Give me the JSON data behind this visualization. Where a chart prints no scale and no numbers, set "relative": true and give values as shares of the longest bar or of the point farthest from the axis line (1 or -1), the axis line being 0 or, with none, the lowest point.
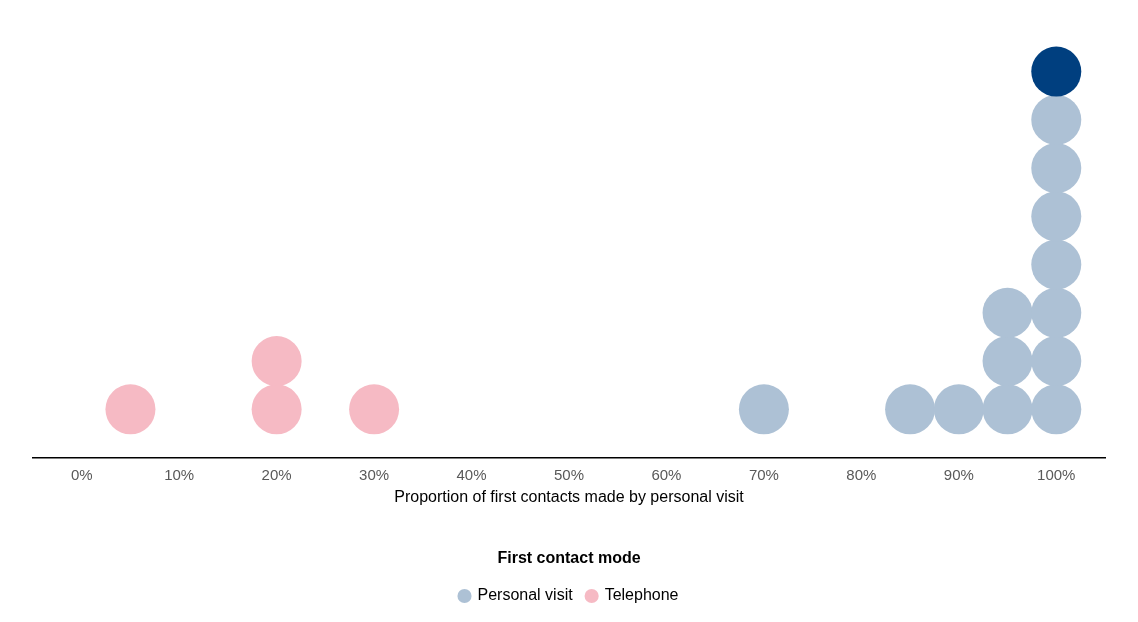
{
  "chart_data": {
    "type": "scatter",
    "xlabel": "Proportion of first contacts made by personal visit",
    "legend_title": "First contact mode",
    "legend": "bottom",
    "grid": false,
    "marker": "circle",
    "relative": true,
    "xlim": [
      -5,
      105
    ],
    "xticks": [
      {
        "value": 0,
        "label": "0%"
      },
      {
        "value": 10,
        "label": "10%"
      },
      {
        "value": 20,
        "label": "20%"
      },
      {
        "value": 30,
        "label": "30%"
      },
      {
        "value": 40,
        "label": "40%"
      },
      {
        "value": 50,
        "label": "50%"
      },
      {
        "value": 60,
        "label": "60%"
      },
      {
        "value": 70,
        "label": "70%"
      },
      {
        "value": 80,
        "label": "80%"
      },
      {
        "value": 90,
        "label": "90%"
      },
      {
        "value": 100,
        "label": "100%"
      }
    ],
    "series": [
      {
        "name": "Personal visit",
        "color": "#adc1d5",
        "x": [
          70,
          85,
          90,
          95,
          95,
          95,
          100,
          100,
          100,
          100,
          100,
          100,
          100,
          100
        ],
        "values": [
          0.125,
          0.125,
          0.125,
          0.125,
          0.25,
          0.375,
          0.125,
          0.25,
          0.375,
          0.5,
          0.625,
          0.75,
          0.875,
          1
        ],
        "colors": [
          "#adc1d5",
          "#adc1d5",
          "#adc1d5",
          "#adc1d5",
          "#adc1d5",
          "#adc1d5",
          "#adc1d5",
          "#adc1d5",
          "#adc1d5",
          "#adc1d5",
          "#adc1d5",
          "#adc1d5",
          "#adc1d5",
          "#003f7f"
        ]
      },
      {
        "name": "Telephone",
        "color": "#f6bac4",
        "x": [
          5,
          20,
          20,
          30
        ],
        "values": [
          0.125,
          0.125,
          0.25,
          0.125
        ]
      }
    ]
  }
}
